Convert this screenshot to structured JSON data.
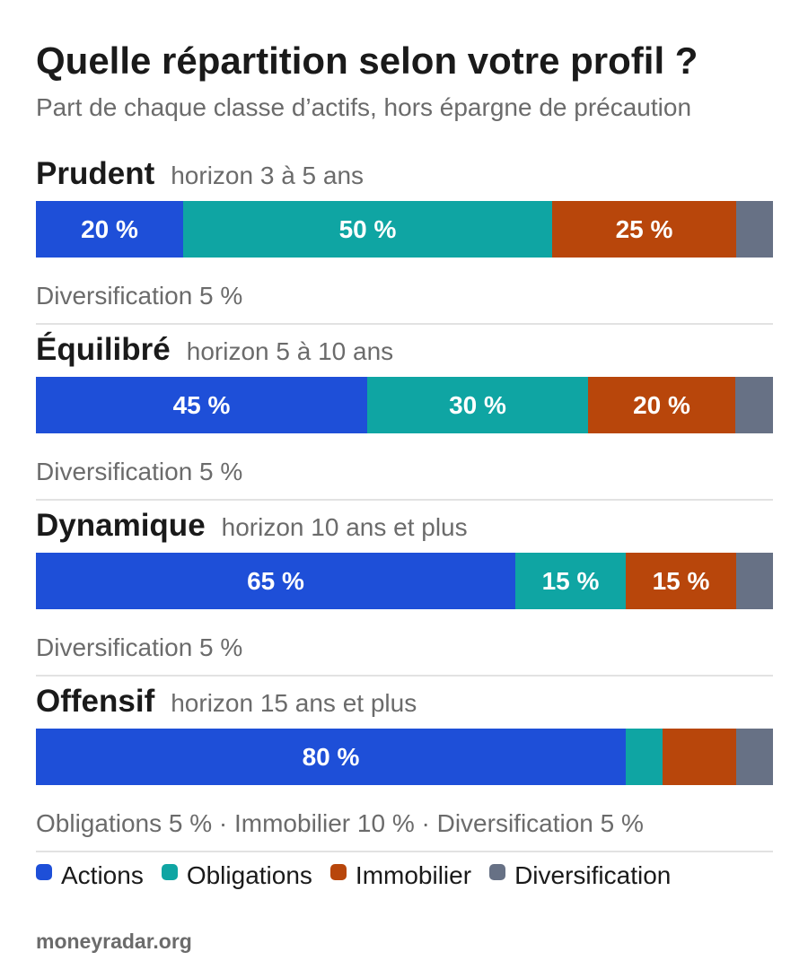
{
  "title": "Quelle répartition selon votre profil ?",
  "subtitle": "Part de chaque classe d’actifs, hors épargne de précaution",
  "colors": {
    "actions": "#1e4fd8",
    "obligations": "#0fa5a3",
    "immobilier": "#b8460b",
    "diversification": "#677185"
  },
  "chart_data": {
    "type": "bar",
    "stacked": true,
    "orientation": "horizontal",
    "unit": "%",
    "series_order": [
      "actions",
      "obligations",
      "immobilier",
      "diversification"
    ],
    "profiles": [
      {
        "name": "Prudent",
        "horizon": "horizon 3 à 5 ans",
        "values": {
          "actions": 20,
          "obligations": 50,
          "immobilier": 25,
          "diversification": 5
        },
        "labels": {
          "actions": "20 %",
          "obligations": "50 %",
          "immobilier": "25 %",
          "diversification": ""
        },
        "note": "Diversification 5 %"
      },
      {
        "name": "Équilibré",
        "horizon": "horizon 5 à 10 ans",
        "values": {
          "actions": 45,
          "obligations": 30,
          "immobilier": 20,
          "diversification": 5
        },
        "labels": {
          "actions": "45 %",
          "obligations": "30 %",
          "immobilier": "20 %",
          "diversification": ""
        },
        "note": "Diversification 5 %"
      },
      {
        "name": "Dynamique",
        "horizon": "horizon 10 ans et plus",
        "values": {
          "actions": 65,
          "obligations": 15,
          "immobilier": 15,
          "diversification": 5
        },
        "labels": {
          "actions": "65 %",
          "obligations": "15 %",
          "immobilier": "15 %",
          "diversification": ""
        },
        "note": "Diversification 5 %"
      },
      {
        "name": "Offensif",
        "horizon": "horizon 15 ans et plus",
        "values": {
          "actions": 80,
          "obligations": 5,
          "immobilier": 10,
          "diversification": 5
        },
        "labels": {
          "actions": "80 %",
          "obligations": "",
          "immobilier": "",
          "diversification": ""
        },
        "note": "Obligations 5 % · Immobilier 10 % · Diversification 5 %"
      }
    ],
    "legend": [
      {
        "key": "actions",
        "label": "Actions"
      },
      {
        "key": "obligations",
        "label": "Obligations"
      },
      {
        "key": "immobilier",
        "label": "Immobilier"
      },
      {
        "key": "diversification",
        "label": "Diversification"
      }
    ]
  },
  "footer": "moneyradar.org"
}
